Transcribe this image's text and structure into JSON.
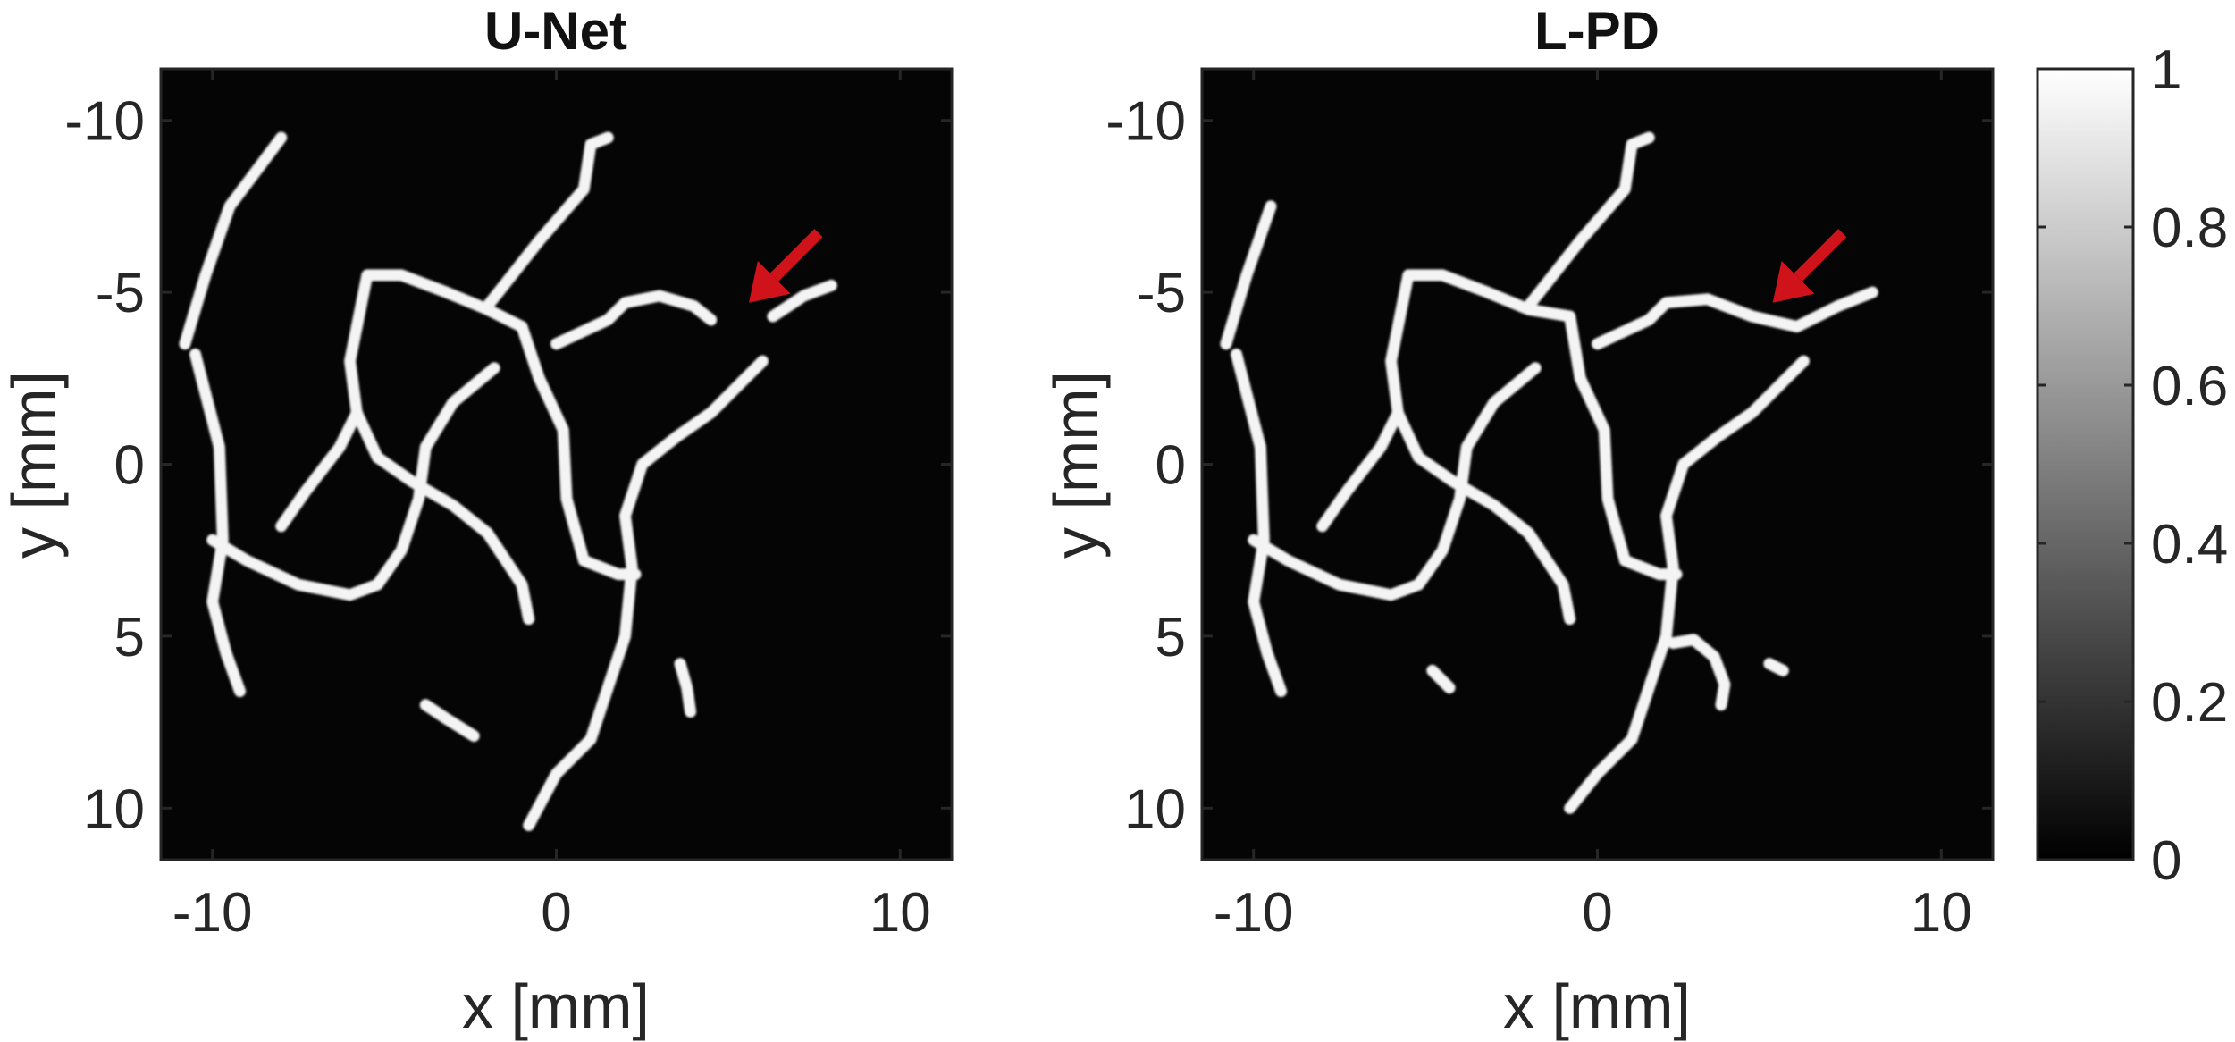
{
  "chart_data": [
    {
      "type": "heatmap",
      "title": "U-Net",
      "xlabel": "x [mm]",
      "ylabel": "y [mm]",
      "xlim": [
        -11.5,
        11.5
      ],
      "ylim": [
        -11.5,
        11.5
      ],
      "y_reversed": true,
      "xticks": [
        -10,
        0,
        10
      ],
      "yticks": [
        -10,
        -5,
        0,
        5,
        10
      ],
      "xtick_labels": [
        "-10",
        "0",
        "10"
      ],
      "ytick_labels": [
        "-10",
        "-5",
        "0",
        "5",
        "10"
      ],
      "colormap": "gray",
      "annotation": {
        "type": "arrow",
        "color": "#d0121b",
        "points_to": [
          5.6,
          -4.7
        ]
      }
    },
    {
      "type": "heatmap",
      "title": "L-PD",
      "xlabel": "x [mm]",
      "ylabel": "y [mm]",
      "xlim": [
        -11.5,
        11.5
      ],
      "ylim": [
        -11.5,
        11.5
      ],
      "y_reversed": true,
      "xticks": [
        -10,
        0,
        10
      ],
      "yticks": [
        -10,
        -5,
        0,
        5,
        10
      ],
      "xtick_labels": [
        "-10",
        "0",
        "10"
      ],
      "ytick_labels": [
        "-10",
        "-5",
        "0",
        "5",
        "10"
      ],
      "colormap": "gray",
      "annotation": {
        "type": "arrow",
        "color": "#d0121b",
        "points_to": [
          5.1,
          -4.7
        ]
      }
    }
  ],
  "colorbar": {
    "range": [
      0,
      1
    ],
    "ticks": [
      0,
      0.2,
      0.4,
      0.6,
      0.8,
      1
    ],
    "tick_labels": [
      "0",
      "0.2",
      "0.4",
      "0.6",
      "0.8",
      "1"
    ]
  },
  "vessels": {
    "unet": [
      [
        [
          -10.8,
          -3.5
        ],
        [
          -10.2,
          -5.5
        ],
        [
          -9.5,
          -7.5
        ],
        [
          -8.0,
          -9.5
        ]
      ],
      [
        [
          -10.5,
          -3.2
        ],
        [
          -9.8,
          -0.5
        ],
        [
          -9.7,
          2.2
        ],
        [
          -10.0,
          4.0
        ],
        [
          -9.6,
          5.5
        ],
        [
          -9.2,
          6.6
        ]
      ],
      [
        [
          -10.0,
          2.2
        ],
        [
          -9.0,
          2.8
        ],
        [
          -7.5,
          3.5
        ],
        [
          -6.0,
          3.8
        ],
        [
          -5.2,
          3.5
        ],
        [
          -4.5,
          2.5
        ],
        [
          -4.0,
          1.0
        ],
        [
          -3.8,
          -0.5
        ],
        [
          -3.0,
          -1.8
        ],
        [
          -1.8,
          -2.8
        ]
      ],
      [
        [
          -8.0,
          1.8
        ],
        [
          -7.3,
          0.8
        ],
        [
          -6.3,
          -0.5
        ],
        [
          -5.8,
          -1.5
        ],
        [
          -5.2,
          -0.2
        ],
        [
          -4.2,
          0.5
        ],
        [
          -3.0,
          1.2
        ],
        [
          -2.0,
          2.0
        ],
        [
          -1.0,
          3.5
        ],
        [
          -0.8,
          4.5
        ]
      ],
      [
        [
          -5.8,
          -1.5
        ],
        [
          -6.0,
          -3.0
        ],
        [
          -5.5,
          -5.5
        ],
        [
          -4.5,
          -5.5
        ],
        [
          -3.2,
          -5.0
        ],
        [
          -2.0,
          -4.5
        ],
        [
          -1.0,
          -4.0
        ]
      ],
      [
        [
          -2.0,
          -4.6
        ],
        [
          -0.5,
          -6.5
        ],
        [
          0.8,
          -8.0
        ],
        [
          1.0,
          -9.3
        ],
        [
          1.5,
          -9.5
        ]
      ],
      [
        [
          -1.0,
          -4.0
        ],
        [
          -0.5,
          -2.5
        ],
        [
          0.2,
          -1.0
        ],
        [
          0.3,
          1.0
        ],
        [
          0.8,
          2.8
        ],
        [
          1.8,
          3.2
        ],
        [
          2.3,
          3.2
        ]
      ],
      [
        [
          0.0,
          -3.5
        ],
        [
          1.5,
          -4.2
        ],
        [
          2.0,
          -4.7
        ],
        [
          3.0,
          -4.9
        ],
        [
          4.0,
          -4.6
        ],
        [
          4.5,
          -4.2
        ]
      ],
      [
        [
          6.0,
          -3.0
        ],
        [
          5.5,
          -2.5
        ],
        [
          4.5,
          -1.5
        ],
        [
          3.5,
          -0.8
        ],
        [
          2.5,
          0.0
        ],
        [
          2.0,
          1.5
        ],
        [
          2.2,
          3.0
        ],
        [
          2.0,
          5.0
        ],
        [
          1.5,
          6.5
        ],
        [
          1.0,
          8.0
        ],
        [
          0.0,
          9.0
        ],
        [
          -0.8,
          10.5
        ]
      ],
      [
        [
          -3.8,
          7.0
        ],
        [
          -3.2,
          7.4
        ],
        [
          -2.4,
          7.9
        ]
      ],
      [
        [
          3.6,
          5.8
        ],
        [
          3.8,
          6.5
        ],
        [
          3.9,
          7.2
        ]
      ],
      [
        [
          8.0,
          -5.2
        ],
        [
          7.2,
          -4.9
        ],
        [
          6.3,
          -4.3
        ]
      ]
    ],
    "lpd": [
      [
        [
          -10.8,
          -3.5
        ],
        [
          -10.2,
          -5.5
        ],
        [
          -9.5,
          -7.5
        ]
      ],
      [
        [
          -10.5,
          -3.2
        ],
        [
          -9.8,
          -0.5
        ],
        [
          -9.7,
          2.2
        ],
        [
          -10.0,
          4.0
        ],
        [
          -9.6,
          5.5
        ],
        [
          -9.2,
          6.6
        ]
      ],
      [
        [
          -10.0,
          2.2
        ],
        [
          -9.0,
          2.8
        ],
        [
          -7.5,
          3.5
        ],
        [
          -6.0,
          3.8
        ],
        [
          -5.2,
          3.5
        ],
        [
          -4.5,
          2.5
        ],
        [
          -4.0,
          1.0
        ],
        [
          -3.8,
          -0.5
        ],
        [
          -3.0,
          -1.8
        ],
        [
          -1.8,
          -2.8
        ]
      ],
      [
        [
          -8.0,
          1.8
        ],
        [
          -7.3,
          0.8
        ],
        [
          -6.3,
          -0.5
        ],
        [
          -5.8,
          -1.5
        ],
        [
          -5.2,
          -0.2
        ],
        [
          -4.2,
          0.5
        ],
        [
          -3.0,
          1.2
        ],
        [
          -2.0,
          2.0
        ],
        [
          -1.0,
          3.5
        ],
        [
          -0.8,
          4.5
        ]
      ],
      [
        [
          -5.8,
          -1.5
        ],
        [
          -6.0,
          -3.0
        ],
        [
          -5.5,
          -5.5
        ],
        [
          -4.5,
          -5.5
        ],
        [
          -3.2,
          -5.0
        ],
        [
          -2.0,
          -4.5
        ],
        [
          -0.8,
          -4.3
        ]
      ],
      [
        [
          -2.0,
          -4.6
        ],
        [
          -0.5,
          -6.5
        ],
        [
          0.8,
          -8.0
        ],
        [
          1.0,
          -9.3
        ],
        [
          1.5,
          -9.5
        ]
      ],
      [
        [
          -0.8,
          -4.3
        ],
        [
          -0.5,
          -2.5
        ],
        [
          0.2,
          -1.0
        ],
        [
          0.3,
          1.0
        ],
        [
          0.8,
          2.8
        ],
        [
          1.8,
          3.2
        ],
        [
          2.3,
          3.2
        ]
      ],
      [
        [
          0.0,
          -3.5
        ],
        [
          1.5,
          -4.2
        ],
        [
          2.0,
          -4.7
        ],
        [
          3.2,
          -4.8
        ],
        [
          4.5,
          -4.3
        ],
        [
          5.8,
          -4.0
        ],
        [
          7.0,
          -4.6
        ],
        [
          8.0,
          -5.0
        ]
      ],
      [
        [
          6.0,
          -3.0
        ],
        [
          5.5,
          -2.5
        ],
        [
          4.5,
          -1.5
        ],
        [
          3.5,
          -0.8
        ],
        [
          2.5,
          0.0
        ],
        [
          2.0,
          1.5
        ],
        [
          2.2,
          3.0
        ],
        [
          2.0,
          5.0
        ],
        [
          1.5,
          6.5
        ],
        [
          1.0,
          8.0
        ],
        [
          0.0,
          9.0
        ],
        [
          -0.8,
          10.0
        ]
      ],
      [
        [
          2.2,
          5.2
        ],
        [
          2.8,
          5.1
        ],
        [
          3.4,
          5.6
        ],
        [
          3.7,
          6.4
        ],
        [
          3.6,
          7.0
        ]
      ],
      [
        [
          -4.8,
          6.0
        ],
        [
          -4.3,
          6.5
        ]
      ],
      [
        [
          5.0,
          5.8
        ],
        [
          5.4,
          6.0
        ]
      ]
    ]
  }
}
